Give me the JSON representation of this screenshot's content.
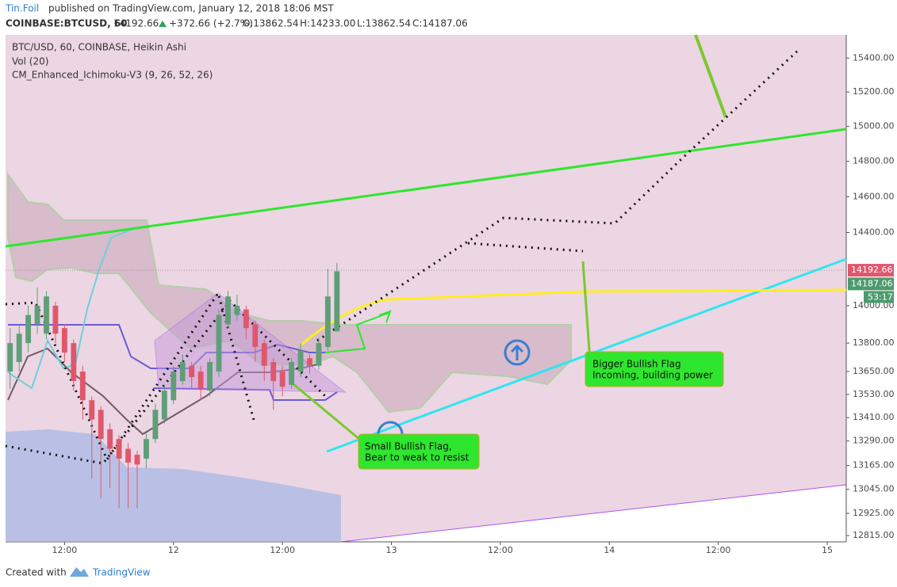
{
  "header": {
    "author": "Tin.Foil",
    "published": "published on TradingView.com, January 12, 2018 18:06 MST",
    "symbol": "COINBASE:BTCUSD, 60",
    "last": "14192.66",
    "change": "+372.66 (+2.7%)",
    "ohlc": [
      "O:13862.54",
      "H:14233.00",
      "L:13862.54",
      "C:14187.06"
    ],
    "footer_prefix": "Created with",
    "footer_brand": "TradingView"
  },
  "chart_data": {
    "type": "candlestick",
    "title": "BTC/USD, 60, COINBASE, Heikin Ashi",
    "legend_items": [
      "Vol (20)",
      "CM_Enhanced_Ichimoku-V3 (9, 26, 52, 26)"
    ],
    "x": [
      6,
      7,
      8,
      9,
      10,
      11,
      12,
      13,
      14,
      15,
      16,
      17,
      18,
      19,
      20,
      21,
      22,
      23,
      24,
      25,
      26,
      27,
      28,
      29,
      30,
      31,
      32,
      33,
      34,
      35,
      36,
      37,
      38,
      39,
      40,
      41,
      42
    ],
    "open": [
      13650,
      13700,
      13800,
      13900,
      13850,
      14000,
      13880,
      13800,
      13650,
      13500,
      13450,
      13350,
      13300,
      13250,
      13220,
      13200,
      13300,
      13400,
      13500,
      13600,
      13680,
      13650,
      13550,
      13650,
      13900,
      13950,
      13980,
      13900,
      13800,
      13700,
      13650,
      13580,
      13650,
      13720,
      13680,
      13780,
      13862.54
    ],
    "high": [
      13880,
      13900,
      14000,
      14100,
      14080,
      14020,
      13900,
      13820,
      13680,
      13520,
      13470,
      13380,
      13320,
      13280,
      13240,
      13330,
      13480,
      13580,
      13680,
      13740,
      13700,
      13680,
      13720,
      13980,
      14080,
      14060,
      14000,
      13920,
      13820,
      13720,
      13680,
      13720,
      13800,
      13740,
      13830,
      14200,
      14233
    ],
    "low": [
      13560,
      13650,
      13750,
      13850,
      13820,
      13800,
      13700,
      13550,
      13400,
      13100,
      13000,
      13050,
      12950,
      12950,
      12950,
      13150,
      13280,
      13380,
      13480,
      13580,
      13560,
      13500,
      13520,
      13620,
      13880,
      13920,
      13820,
      13700,
      13600,
      13450,
      13520,
      13560,
      13620,
      13640,
      13660,
      13760,
      13862.54
    ],
    "close": [
      13800,
      13850,
      13950,
      14000,
      14050,
      13850,
      13750,
      13600,
      13500,
      13400,
      13300,
      13250,
      13200,
      13180,
      13170,
      13300,
      13450,
      13550,
      13650,
      13700,
      13620,
      13560,
      13700,
      13950,
      14050,
      14000,
      13880,
      13780,
      13680,
      13600,
      13570,
      13700,
      13760,
      13680,
      13800,
      14050,
      14187.06
    ],
    "up_color": "#5f9e78",
    "down_color": "#e0576c",
    "log_scale": true,
    "xlim": [
      5.5,
      98.1
    ],
    "xticks": [
      {
        "value": 12,
        "label": "12:00"
      },
      {
        "value": 24,
        "label": "12"
      },
      {
        "value": 36,
        "label": "12:00"
      },
      {
        "value": 48,
        "label": "13"
      },
      {
        "value": 60,
        "label": "12:00"
      },
      {
        "value": 72,
        "label": "14"
      },
      {
        "value": 84,
        "label": "12:00"
      },
      {
        "value": 96,
        "label": "15"
      }
    ],
    "ylim": [
      12784,
      15538
    ],
    "yticks": [
      {
        "value": 15400,
        "label": "15400.00"
      },
      {
        "value": 15200,
        "label": "15200.00"
      },
      {
        "value": 15000,
        "label": "15000.00"
      },
      {
        "value": 14800,
        "label": "14800.00"
      },
      {
        "value": 14600,
        "label": "14600.00"
      },
      {
        "value": 14400,
        "label": "14400.00"
      },
      {
        "value": 14000,
        "label": "14000.00"
      },
      {
        "value": 13800,
        "label": "13800.00"
      },
      {
        "value": 13650,
        "label": "13650.00"
      },
      {
        "value": 13530,
        "label": "13530.00"
      },
      {
        "value": 13410,
        "label": "13410.00"
      },
      {
        "value": 13290,
        "label": "13290.00"
      },
      {
        "value": 13165,
        "label": "13165.00"
      },
      {
        "value": 13045,
        "label": "13045.00"
      },
      {
        "value": 12925,
        "label": "12925.00"
      },
      {
        "value": 12815,
        "label": "12815.00"
      }
    ],
    "last_price": 14192.66,
    "close_price": 14187.06,
    "countdown": "53:17",
    "annotations": [
      [
        "Small Bullish Flag,",
        "Bear to weak to resist"
      ],
      [
        "Bigger Bullish Flag",
        "Incoming, building power"
      ]
    ]
  }
}
